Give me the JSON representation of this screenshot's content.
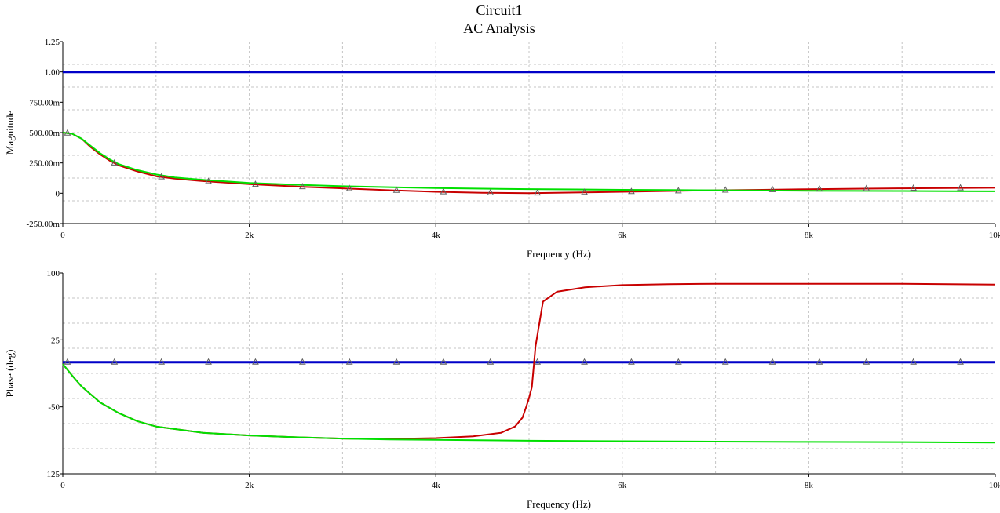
{
  "title": "Circuit1",
  "subtitle": "AC Analysis",
  "colors": {
    "background": "#ffffff",
    "grid": "#c4c4c4",
    "axis": "#000000",
    "series_blue": "#0000c8",
    "series_red": "#c80000",
    "series_green": "#00e000"
  },
  "chart_data": [
    {
      "type": "line",
      "xlabel": "Frequency (Hz)",
      "ylabel": "Magnitude",
      "xlim": [
        0,
        10000
      ],
      "ylim": [
        -0.25,
        1.25
      ],
      "grid": true,
      "x_ticks": [
        0,
        2000,
        4000,
        6000,
        8000,
        10000
      ],
      "x_tick_labels": [
        "0",
        "2k",
        "4k",
        "6k",
        "8k",
        "10k"
      ],
      "y_ticks": [
        -0.25,
        0,
        0.25,
        0.5,
        0.75,
        1.0,
        1.25
      ],
      "y_tick_labels": [
        "-250.00m",
        "0",
        "250.00m",
        "500.00m",
        "750.00m",
        "1.00",
        "1.25"
      ],
      "series": [
        {
          "color": "#0000c8",
          "x": [
            0,
            10000
          ],
          "y": [
            1.0,
            1.0
          ]
        },
        {
          "color": "#c80000",
          "x": [
            0,
            100,
            200,
            300,
            400,
            500,
            600,
            800,
            1000,
            1200,
            1500,
            2000,
            2500,
            3000,
            3500,
            4000,
            4500,
            5000,
            5500,
            6000,
            6500,
            7000,
            7500,
            8000,
            8500,
            9000,
            9500,
            10000
          ],
          "y": [
            0.5,
            0.49,
            0.45,
            0.38,
            0.32,
            0.27,
            0.23,
            0.18,
            0.14,
            0.12,
            0.1,
            0.075,
            0.055,
            0.04,
            0.025,
            0.012,
            0.004,
            0.0,
            0.006,
            0.012,
            0.018,
            0.024,
            0.028,
            0.033,
            0.037,
            0.04,
            0.043,
            0.045
          ]
        },
        {
          "color": "#00e000",
          "x": [
            0,
            100,
            200,
            300,
            400,
            500,
            600,
            800,
            1000,
            1200,
            1500,
            2000,
            2500,
            3000,
            3500,
            4000,
            4500,
            5000,
            5500,
            6000,
            6500,
            7000,
            7500,
            8000,
            8500,
            9000,
            9500,
            10000
          ],
          "y": [
            0.5,
            0.49,
            0.45,
            0.39,
            0.33,
            0.28,
            0.24,
            0.19,
            0.155,
            0.13,
            0.11,
            0.085,
            0.07,
            0.058,
            0.05,
            0.043,
            0.038,
            0.034,
            0.031,
            0.028,
            0.026,
            0.024,
            0.022,
            0.02,
            0.019,
            0.018,
            0.017,
            0.016
          ]
        }
      ]
    },
    {
      "type": "line",
      "xlabel": "Frequency (Hz)",
      "ylabel": "Phase (deg)",
      "xlim": [
        0,
        10000
      ],
      "ylim": [
        -125,
        100
      ],
      "grid": true,
      "x_ticks": [
        0,
        2000,
        4000,
        6000,
        8000,
        10000
      ],
      "x_tick_labels": [
        "0",
        "2k",
        "4k",
        "6k",
        "8k",
        "10k"
      ],
      "y_ticks": [
        -125,
        -50,
        25,
        100
      ],
      "y_tick_labels": [
        "-125",
        "-50",
        "25",
        "100"
      ],
      "series": [
        {
          "color": "#0000c8",
          "x": [
            0,
            10000
          ],
          "y": [
            0,
            0
          ]
        },
        {
          "color": "#c80000",
          "x": [
            0,
            100,
            200,
            300,
            400,
            600,
            800,
            1000,
            1500,
            2000,
            2500,
            3000,
            3500,
            4000,
            4400,
            4700,
            4850,
            4930,
            4970,
            5000,
            5030,
            5070,
            5150,
            5300,
            5600,
            6000,
            6500,
            7000,
            8000,
            9000,
            9500,
            10000
          ],
          "y": [
            -2,
            -15,
            -27,
            -36,
            -45,
            -57,
            -66,
            -72,
            -79,
            -82,
            -84,
            -85.5,
            -86,
            -85,
            -83,
            -79,
            -72,
            -62,
            -50,
            -40,
            -28,
            18,
            68,
            79,
            84,
            86.5,
            87.5,
            88,
            88,
            88,
            87.5,
            87
          ]
        },
        {
          "color": "#00e000",
          "x": [
            0,
            100,
            200,
            300,
            400,
            600,
            800,
            1000,
            1500,
            2000,
            2500,
            3000,
            3500,
            4000,
            5000,
            6000,
            7000,
            8000,
            9000,
            10000
          ],
          "y": [
            -2,
            -15,
            -27,
            -36,
            -45,
            -57,
            -66,
            -72,
            -79,
            -82,
            -84,
            -85.5,
            -86.5,
            -87,
            -88,
            -88.5,
            -89,
            -89.3,
            -89.5,
            -90
          ]
        }
      ]
    }
  ]
}
